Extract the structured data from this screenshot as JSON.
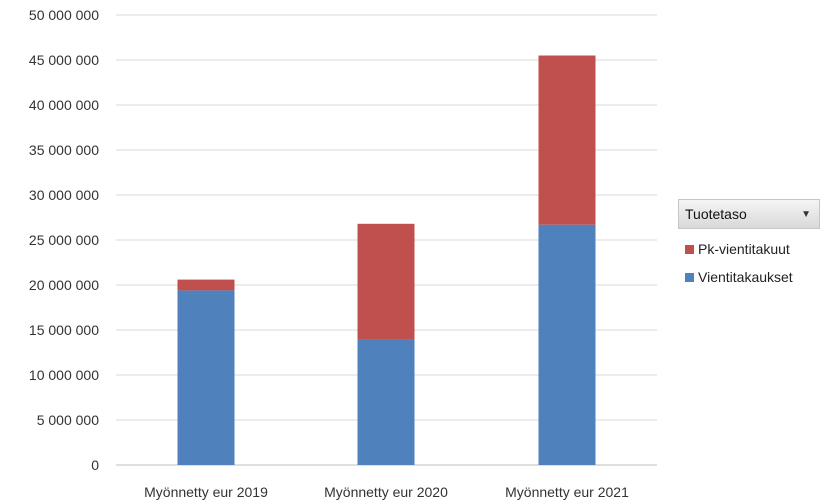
{
  "legend": {
    "title": "Tuotetaso",
    "dropdown_icon": "chevron-down-icon"
  },
  "chart_data": {
    "type": "bar",
    "stacked": true,
    "title": "",
    "xlabel": "",
    "ylabel": "",
    "categories": [
      "Myönnetty eur 2019",
      "Myönnetty eur 2020",
      "Myönnetty eur 2021"
    ],
    "ylim": [
      0,
      50000000
    ],
    "yticks": [
      0,
      5000000,
      10000000,
      15000000,
      20000000,
      25000000,
      30000000,
      35000000,
      40000000,
      45000000,
      50000000
    ],
    "ytick_labels": [
      "0",
      "5 000 000",
      "10 000 000",
      "15 000 000",
      "20 000 000",
      "25 000 000",
      "30 000 000",
      "35 000 000",
      "40 000 000",
      "45 000 000",
      "50 000 000"
    ],
    "grid": true,
    "legend_position": "right",
    "series": [
      {
        "name": "Vientitakaukset",
        "color": "#4f81bd",
        "values": [
          19400000,
          13900000,
          26700000
        ]
      },
      {
        "name": "Pk-vientitakuut",
        "color": "#c0504d",
        "values": [
          1200000,
          12900000,
          18800000
        ]
      }
    ]
  }
}
